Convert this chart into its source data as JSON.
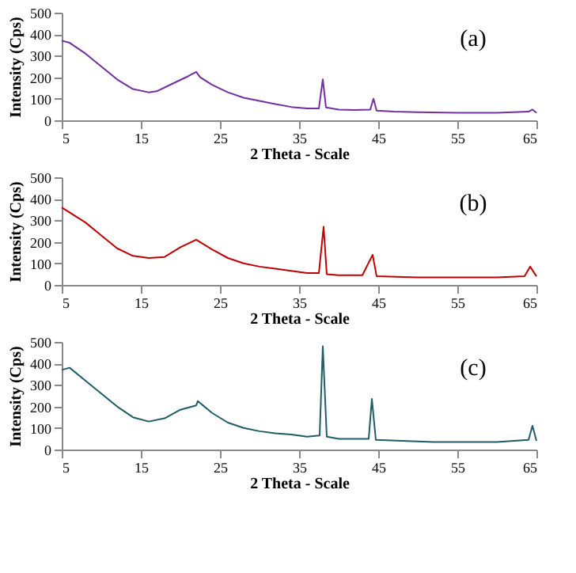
{
  "chart_data": [
    {
      "type": "line",
      "xlabel": "2 Theta - Scale",
      "ylabel": "Intensity (Cps)",
      "annotations": [
        "(a)"
      ],
      "xlim": [
        5,
        65
      ],
      "ylim": [
        0,
        500
      ],
      "xticks": [
        5,
        15,
        25,
        35,
        45,
        55,
        65
      ],
      "yticks": [
        0,
        100,
        200,
        300,
        400,
        500
      ],
      "x": [
        5,
        6,
        8,
        10,
        12,
        14,
        16,
        17,
        19,
        21,
        22,
        22.5,
        24,
        26,
        28,
        30,
        32,
        34,
        36,
        37.5,
        38,
        38.4,
        40,
        42,
        44,
        44.4,
        44.8,
        47,
        50,
        55,
        60,
        64,
        64.5,
        65
      ],
      "series": [
        {
          "color": "#7030a0",
          "values": [
            370,
            360,
            310,
            250,
            190,
            145,
            130,
            135,
            170,
            205,
            225,
            200,
            165,
            130,
            105,
            90,
            75,
            62,
            55,
            55,
            190,
            60,
            50,
            48,
            50,
            100,
            45,
            40,
            38,
            35,
            35,
            40,
            50,
            35
          ]
        }
      ]
    },
    {
      "type": "line",
      "xlabel": "2 Theta - Scale",
      "ylabel": "Intensity (Cps)",
      "annotations": [
        "(b)"
      ],
      "xlim": [
        5,
        65
      ],
      "ylim": [
        0,
        500
      ],
      "xticks": [
        5,
        15,
        25,
        35,
        45,
        55,
        65
      ],
      "yticks": [
        0,
        100,
        200,
        300,
        400,
        500
      ],
      "x": [
        5,
        8,
        10,
        12,
        14,
        16,
        18,
        20,
        22,
        24,
        26,
        28,
        30,
        32,
        34,
        36,
        37.5,
        38.1,
        38.5,
        40,
        43,
        44.3,
        44.8,
        50,
        55,
        60,
        63.5,
        64.2,
        65
      ],
      "series": [
        {
          "color": "#c00000",
          "values": [
            360,
            290,
            230,
            170,
            135,
            125,
            130,
            175,
            210,
            165,
            125,
            100,
            85,
            75,
            65,
            55,
            55,
            270,
            50,
            45,
            45,
            140,
            40,
            35,
            35,
            35,
            40,
            85,
            40
          ]
        }
      ]
    },
    {
      "type": "line",
      "xlabel": "2 Theta - Scale",
      "ylabel": "Intensity (Cps)",
      "annotations": [
        "(c)"
      ],
      "xlim": [
        5,
        65
      ],
      "ylim": [
        0,
        500
      ],
      "xticks": [
        5,
        15,
        25,
        35,
        45,
        55,
        65
      ],
      "yticks": [
        0,
        100,
        200,
        300,
        400,
        500
      ],
      "x": [
        5,
        6,
        8,
        10,
        12,
        14,
        16,
        18,
        20,
        22,
        22.2,
        24,
        26,
        28,
        30,
        32,
        34,
        36,
        37.6,
        38,
        38.5,
        40,
        43.8,
        44.2,
        44.7,
        48,
        52,
        56,
        60,
        64,
        64.5,
        65
      ],
      "series": [
        {
          "color": "#1f5c67",
          "values": [
            370,
            380,
            320,
            260,
            200,
            150,
            130,
            145,
            185,
            205,
            225,
            170,
            125,
            100,
            85,
            75,
            70,
            60,
            65,
            480,
            60,
            50,
            50,
            235,
            45,
            40,
            35,
            35,
            35,
            45,
            110,
            40
          ]
        }
      ]
    }
  ]
}
